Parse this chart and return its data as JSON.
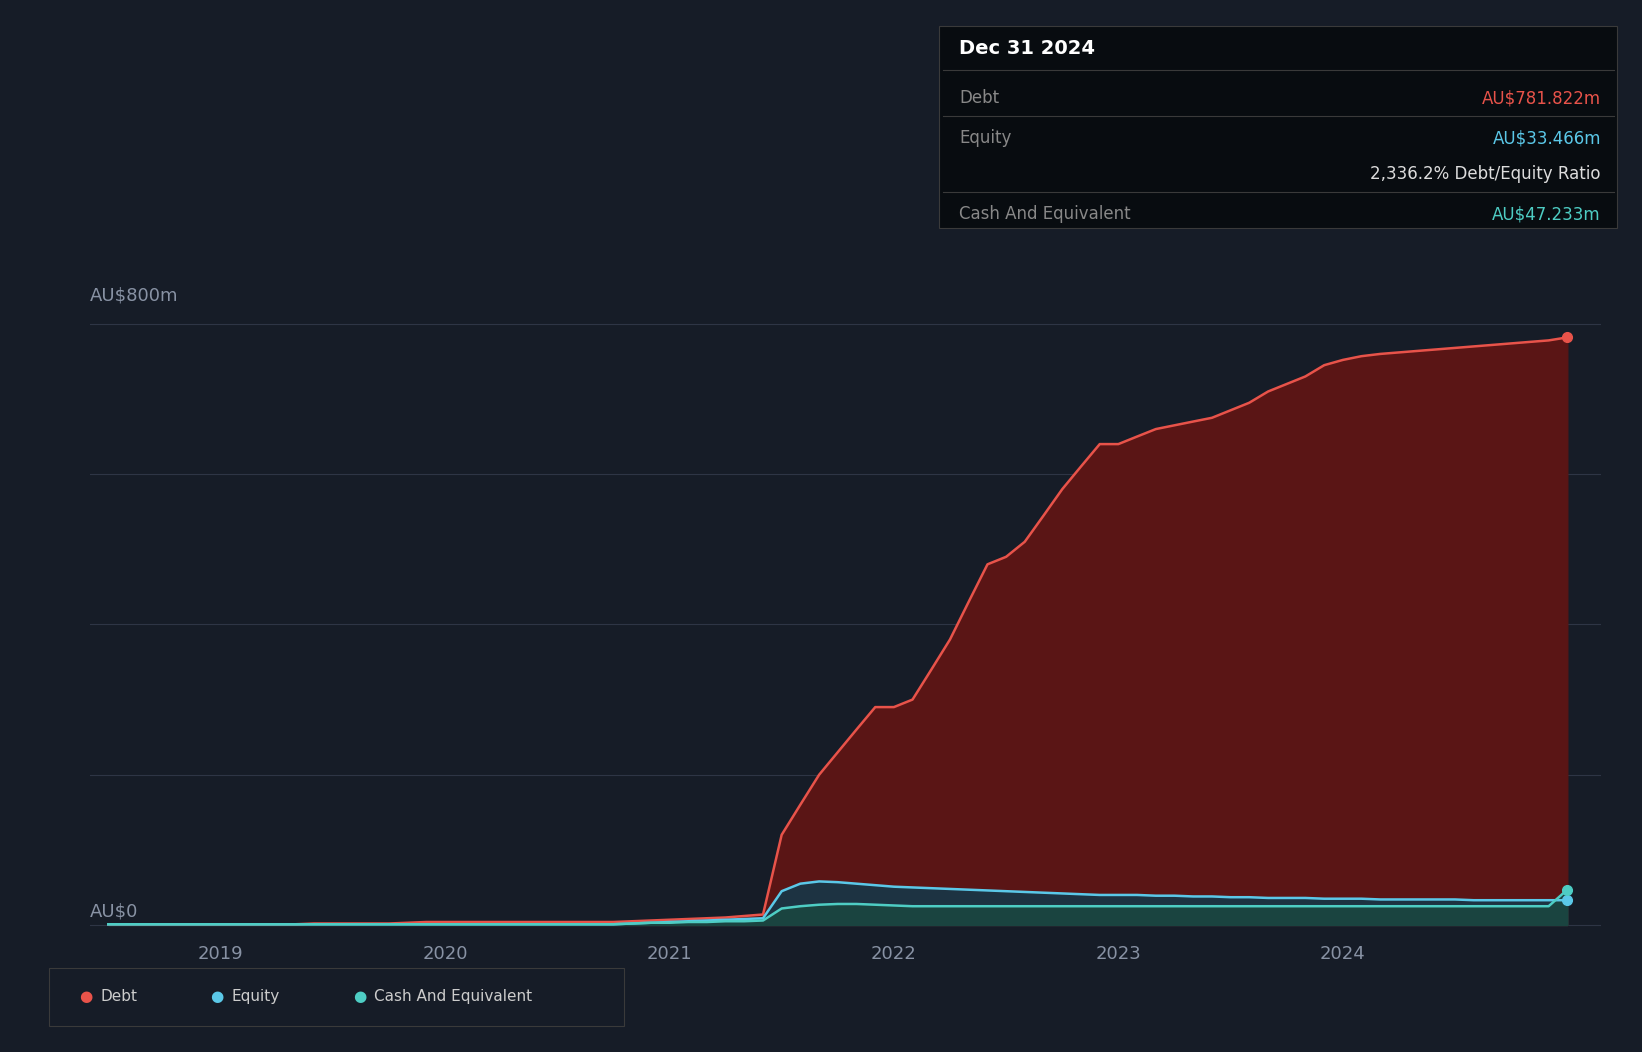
{
  "background_color": "#161c27",
  "plot_bg_color": "#161c27",
  "ylabel_top": "AU$800m",
  "ylabel_bottom": "AU$0",
  "x_ticks": [
    2019,
    2020,
    2021,
    2022,
    2023,
    2024
  ],
  "x_tick_labels": [
    "2019",
    "2020",
    "2021",
    "2022",
    "2023",
    "2024"
  ],
  "debt_color": "#e8534a",
  "equity_color": "#5bc8e8",
  "cash_color": "#4ecdc4",
  "debt_fill_color": "#5a1515",
  "equity_fill_color": "#1a3545",
  "cash_fill_color": "#1a4540",
  "tooltip_bg": "#080c10",
  "tooltip_border": "#3a3a3a",
  "tooltip_title": "Dec 31 2024",
  "tooltip_debt_label": "Debt",
  "tooltip_debt_value": "AU$781.822m",
  "tooltip_equity_label": "Equity",
  "tooltip_equity_value": "AU$33.466m",
  "tooltip_ratio": "2,336.2% Debt/Equity Ratio",
  "tooltip_cash_label": "Cash And Equivalent",
  "tooltip_cash_value": "AU$47.233m",
  "dates": [
    2018.5,
    2018.583,
    2018.667,
    2018.75,
    2018.833,
    2018.917,
    2019.0,
    2019.083,
    2019.167,
    2019.25,
    2019.333,
    2019.417,
    2019.5,
    2019.583,
    2019.667,
    2019.75,
    2019.833,
    2019.917,
    2020.0,
    2020.083,
    2020.167,
    2020.25,
    2020.333,
    2020.417,
    2020.5,
    2020.583,
    2020.667,
    2020.75,
    2020.833,
    2020.917,
    2021.0,
    2021.083,
    2021.167,
    2021.25,
    2021.333,
    2021.417,
    2021.5,
    2021.583,
    2021.667,
    2021.75,
    2021.833,
    2021.917,
    2022.0,
    2022.083,
    2022.167,
    2022.25,
    2022.333,
    2022.417,
    2022.5,
    2022.583,
    2022.667,
    2022.75,
    2022.833,
    2022.917,
    2023.0,
    2023.083,
    2023.167,
    2023.25,
    2023.333,
    2023.417,
    2023.5,
    2023.583,
    2023.667,
    2023.75,
    2023.833,
    2023.917,
    2024.0,
    2024.083,
    2024.167,
    2024.25,
    2024.333,
    2024.417,
    2024.5,
    2024.583,
    2024.667,
    2024.75,
    2024.833,
    2024.917,
    2025.0
  ],
  "debt_values": [
    1,
    1,
    1,
    1,
    1,
    1,
    1,
    1,
    1,
    1,
    1,
    2,
    2,
    2,
    2,
    2,
    3,
    4,
    4,
    4,
    4,
    4,
    4,
    4,
    4,
    4,
    4,
    4,
    5,
    6,
    7,
    8,
    9,
    10,
    12,
    14,
    120,
    160,
    200,
    230,
    260,
    290,
    290,
    300,
    340,
    380,
    430,
    480,
    490,
    510,
    545,
    580,
    610,
    640,
    640,
    650,
    660,
    665,
    670,
    675,
    685,
    695,
    710,
    720,
    730,
    745,
    752,
    757,
    760,
    762,
    764,
    766,
    768,
    770,
    772,
    774,
    776,
    778,
    782
  ],
  "equity_values": [
    1,
    1,
    1,
    1,
    1,
    1,
    1,
    1,
    1,
    1,
    1,
    1,
    1,
    1,
    1,
    1,
    1,
    1,
    1,
    1,
    1,
    1,
    1,
    1,
    1,
    1,
    1,
    1,
    2,
    3,
    4,
    5,
    6,
    7,
    8,
    9,
    45,
    55,
    58,
    57,
    55,
    53,
    51,
    50,
    49,
    48,
    47,
    46,
    45,
    44,
    43,
    42,
    41,
    40,
    40,
    40,
    39,
    39,
    38,
    38,
    37,
    37,
    36,
    36,
    36,
    35,
    35,
    35,
    34,
    34,
    34,
    34,
    34,
    33,
    33,
    33,
    33,
    33,
    33
  ],
  "cash_values": [
    1,
    1,
    1,
    1,
    1,
    1,
    1,
    1,
    1,
    1,
    1,
    1,
    1,
    1,
    1,
    1,
    1,
    1,
    1,
    1,
    1,
    1,
    1,
    1,
    1,
    1,
    1,
    1,
    2,
    3,
    3,
    4,
    4,
    5,
    5,
    6,
    22,
    25,
    27,
    28,
    28,
    27,
    26,
    25,
    25,
    25,
    25,
    25,
    25,
    25,
    25,
    25,
    25,
    25,
    25,
    25,
    25,
    25,
    25,
    25,
    25,
    25,
    25,
    25,
    25,
    25,
    25,
    25,
    25,
    25,
    25,
    25,
    25,
    25,
    25,
    25,
    25,
    25,
    47
  ]
}
